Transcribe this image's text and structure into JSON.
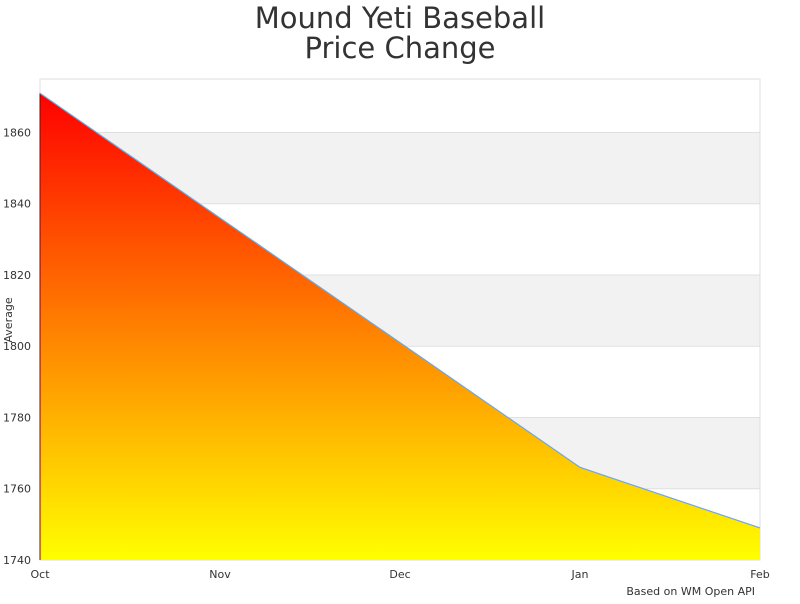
{
  "chart_data": {
    "type": "area",
    "title": [
      "Mound Yeti Baseball",
      "Price Change"
    ],
    "y_label": "Average",
    "credit": "Based on WM Open API",
    "categories": [
      "Oct",
      "Nov",
      "Dec",
      "Jan",
      "Feb"
    ],
    "series": [
      {
        "name": "Average",
        "color": "#6fa8dc",
        "gradient": [
          "#ff0000",
          "#ffff00"
        ],
        "values": [
          1871,
          1836,
          1801,
          1766,
          1749
        ]
      }
    ],
    "ylim": [
      1740,
      1875
    ],
    "yticks": [
      1740,
      1760,
      1780,
      1800,
      1820,
      1840,
      1860
    ],
    "grid": true
  }
}
